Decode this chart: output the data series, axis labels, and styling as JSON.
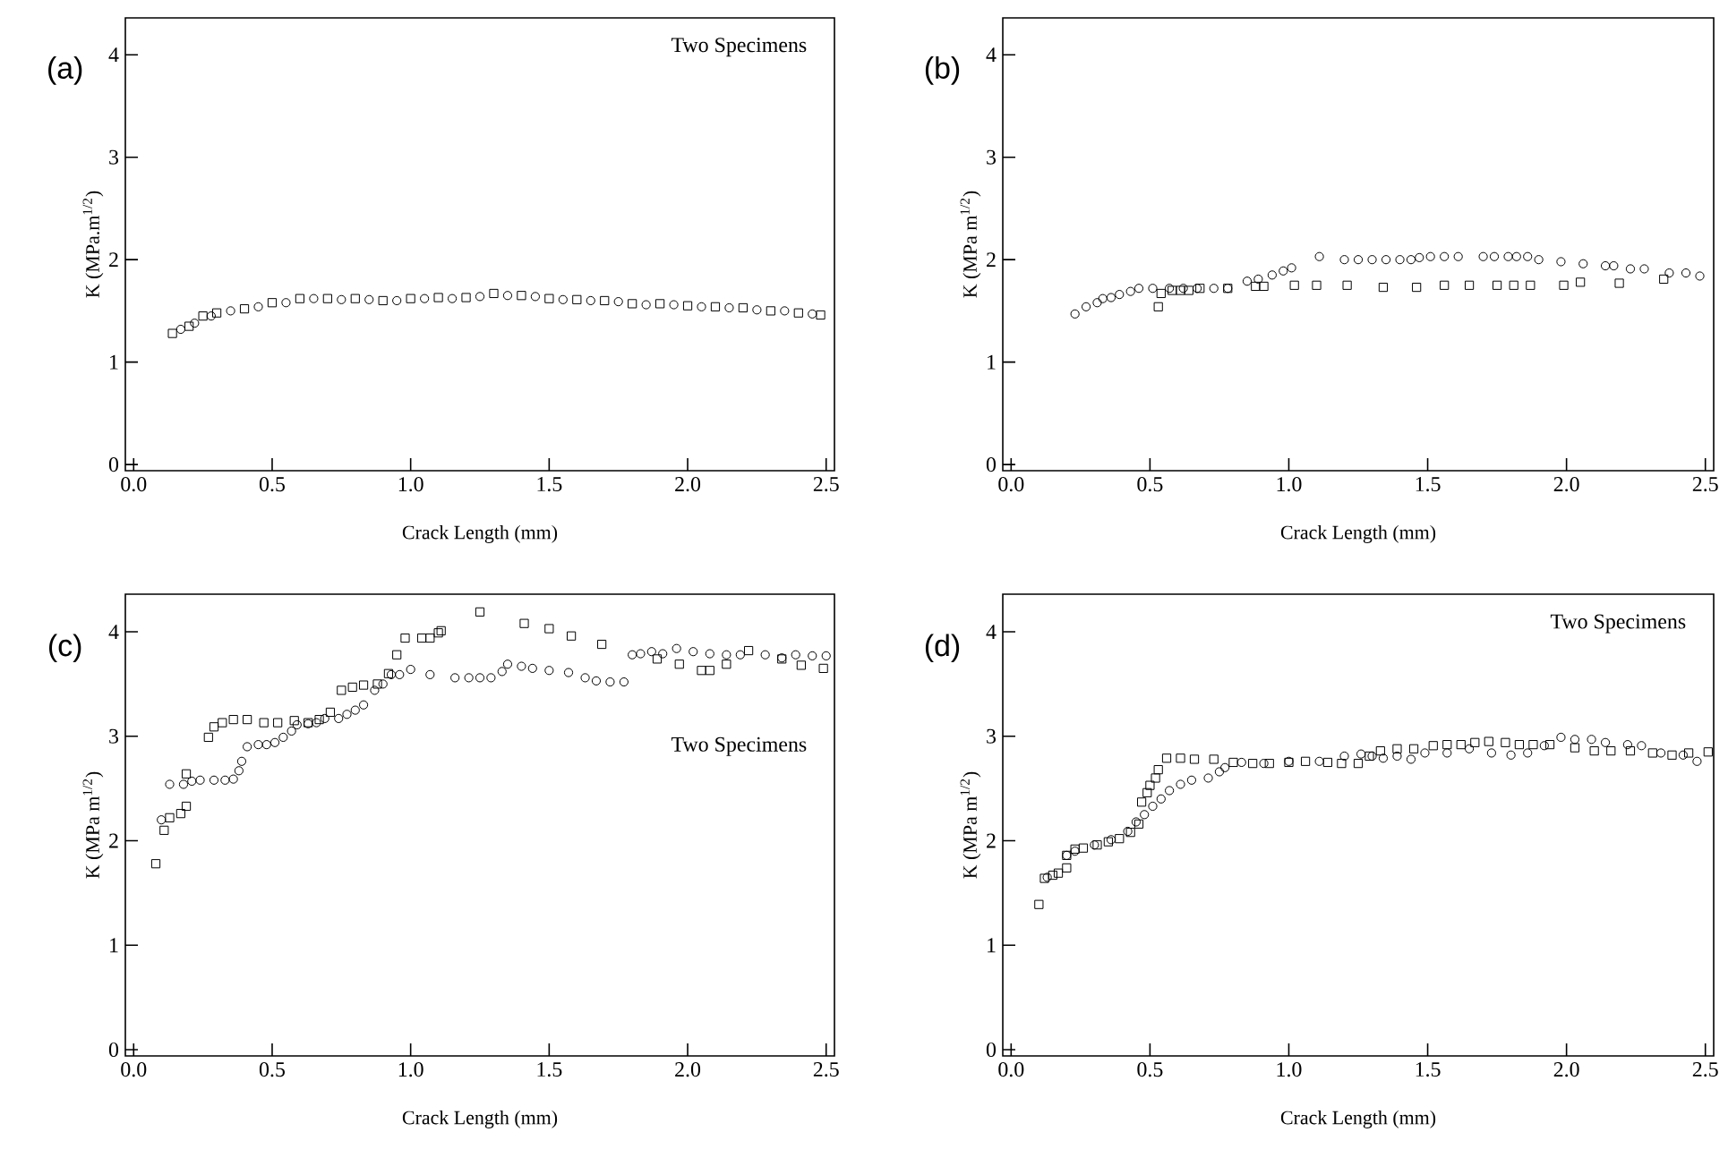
{
  "chart_data": [
    {
      "type": "scatter",
      "title": "(a)",
      "xlabel": "Crack Length (mm)",
      "ylabel": "K (MPa.m$^{1/2}$)",
      "annotations": [
        "Two Specimens"
      ],
      "xlim": [
        -0.03,
        2.53
      ],
      "ylim": [
        -0.06,
        4.36
      ],
      "xticks": [
        {
          "value": 0,
          "label": "0.0"
        },
        {
          "value": 0.5,
          "label": "0.5"
        },
        {
          "value": 1,
          "label": "1.0"
        },
        {
          "value": 1.5,
          "label": "1.5"
        },
        {
          "value": 2,
          "label": "2.0"
        },
        {
          "value": 2.5,
          "label": "2.5"
        }
      ],
      "yticks": [
        0,
        1,
        2,
        3,
        4
      ],
      "series": [
        {
          "marker": "square",
          "color": "#000000",
          "x": [
            0.14,
            0.2,
            0.25,
            0.3,
            0.4,
            0.5,
            0.6,
            0.7,
            0.8,
            0.9,
            1.0,
            1.1,
            1.2,
            1.3,
            1.4,
            1.5,
            1.6,
            1.7,
            1.8,
            1.9,
            2.0,
            2.1,
            2.2,
            2.3,
            2.4,
            2.48
          ],
          "values": [
            1.28,
            1.35,
            1.45,
            1.48,
            1.52,
            1.58,
            1.62,
            1.62,
            1.62,
            1.6,
            1.62,
            1.63,
            1.63,
            1.67,
            1.65,
            1.62,
            1.61,
            1.6,
            1.57,
            1.57,
            1.55,
            1.54,
            1.53,
            1.5,
            1.48,
            1.46
          ]
        },
        {
          "marker": "circle",
          "color": "#000000",
          "x": [
            0.17,
            0.22,
            0.28,
            0.35,
            0.45,
            0.55,
            0.65,
            0.75,
            0.85,
            0.95,
            1.05,
            1.15,
            1.25,
            1.35,
            1.45,
            1.55,
            1.65,
            1.75,
            1.85,
            1.95,
            2.05,
            2.15,
            2.25,
            2.35,
            2.45
          ],
          "values": [
            1.32,
            1.38,
            1.45,
            1.5,
            1.54,
            1.58,
            1.62,
            1.61,
            1.61,
            1.6,
            1.62,
            1.62,
            1.64,
            1.65,
            1.64,
            1.61,
            1.6,
            1.59,
            1.56,
            1.56,
            1.54,
            1.53,
            1.51,
            1.5,
            1.47
          ]
        }
      ]
    },
    {
      "type": "scatter",
      "title": "(b)",
      "xlabel": "Crack Length (mm)",
      "ylabel": "K (MPa m$^{1/2}$)",
      "xlim": [
        -0.03,
        2.53
      ],
      "ylim": [
        -0.06,
        4.36
      ],
      "xticks": [
        {
          "value": 0,
          "label": "0.0"
        },
        {
          "value": 0.5,
          "label": "0.5"
        },
        {
          "value": 1,
          "label": "1.0"
        },
        {
          "value": 1.5,
          "label": "1.5"
        },
        {
          "value": 2,
          "label": "2.0"
        },
        {
          "value": 2.5,
          "label": "2.5"
        }
      ],
      "yticks": [
        0,
        1,
        2,
        3,
        4
      ],
      "series": [
        {
          "marker": "circle",
          "color": "#000000",
          "x": [
            0.23,
            0.27,
            0.31,
            0.33,
            0.36,
            0.39,
            0.43,
            0.46,
            0.51,
            0.57,
            0.62,
            0.67,
            0.73,
            0.78,
            0.85,
            0.89,
            0.94,
            0.98,
            1.01,
            1.11,
            1.2,
            1.25,
            1.3,
            1.35,
            1.4,
            1.44,
            1.47,
            1.51,
            1.56,
            1.61,
            1.7,
            1.74,
            1.79,
            1.82,
            1.86,
            1.9,
            1.98,
            2.06,
            2.14,
            2.17,
            2.23,
            2.28,
            2.37,
            2.43,
            2.48
          ],
          "values": [
            1.47,
            1.54,
            1.58,
            1.62,
            1.63,
            1.66,
            1.69,
            1.72,
            1.72,
            1.72,
            1.72,
            1.72,
            1.72,
            1.72,
            1.79,
            1.81,
            1.85,
            1.89,
            1.92,
            2.03,
            2.0,
            2.0,
            2.0,
            2.0,
            2.0,
            2.0,
            2.02,
            2.03,
            2.03,
            2.03,
            2.03,
            2.03,
            2.03,
            2.03,
            2.03,
            2.0,
            1.98,
            1.96,
            1.94,
            1.94,
            1.91,
            1.91,
            1.87,
            1.87,
            1.84
          ]
        },
        {
          "marker": "square",
          "color": "#000000",
          "x": [
            0.53,
            0.54,
            0.58,
            0.61,
            0.64,
            0.68,
            0.78,
            0.88,
            0.91,
            1.02,
            1.1,
            1.21,
            1.34,
            1.46,
            1.56,
            1.65,
            1.75,
            1.81,
            1.87,
            1.99,
            2.05,
            2.19,
            2.35
          ],
          "values": [
            1.54,
            1.67,
            1.7,
            1.7,
            1.7,
            1.72,
            1.72,
            1.74,
            1.74,
            1.75,
            1.75,
            1.75,
            1.73,
            1.73,
            1.75,
            1.75,
            1.75,
            1.75,
            1.75,
            1.75,
            1.78,
            1.77,
            1.81
          ]
        }
      ]
    },
    {
      "type": "scatter",
      "title": "(c)",
      "xlabel": "Crack Length (mm)",
      "ylabel": "K (MPa m$^{1/2}$)",
      "annotations": [
        "Two Specimens"
      ],
      "xlim": [
        -0.03,
        2.53
      ],
      "ylim": [
        -0.06,
        4.36
      ],
      "xticks": [
        {
          "value": 0,
          "label": "0.0"
        },
        {
          "value": 0.5,
          "label": "0.5"
        },
        {
          "value": 1,
          "label": "1.0"
        },
        {
          "value": 1.5,
          "label": "1.5"
        },
        {
          "value": 2,
          "label": "2.0"
        },
        {
          "value": 2.5,
          "label": "2.5"
        }
      ],
      "yticks": [
        0,
        1,
        2,
        3,
        4
      ],
      "series": [
        {
          "marker": "square",
          "color": "#000000",
          "x": [
            0.08,
            0.11,
            0.13,
            0.17,
            0.19,
            0.19,
            0.27,
            0.29,
            0.32,
            0.36,
            0.41,
            0.47,
            0.52,
            0.58,
            0.63,
            0.67,
            0.71,
            0.75,
            0.79,
            0.83,
            0.88,
            0.92,
            0.95,
            0.98,
            1.04,
            1.07,
            1.1,
            1.11,
            1.25,
            1.41,
            1.5,
            1.58,
            1.69,
            1.89,
            1.97,
            2.05,
            2.08,
            2.14,
            2.22,
            2.34,
            2.41,
            2.49
          ],
          "values": [
            1.78,
            2.1,
            2.22,
            2.26,
            2.33,
            2.64,
            2.99,
            3.09,
            3.13,
            3.16,
            3.16,
            3.13,
            3.13,
            3.15,
            3.13,
            3.16,
            3.23,
            3.44,
            3.47,
            3.49,
            3.5,
            3.6,
            3.78,
            3.94,
            3.94,
            3.94,
            3.99,
            4.01,
            4.19,
            4.08,
            4.03,
            3.96,
            3.88,
            3.74,
            3.69,
            3.63,
            3.63,
            3.69,
            3.82,
            3.74,
            3.68,
            3.65
          ]
        },
        {
          "marker": "circle",
          "color": "#000000",
          "x": [
            0.1,
            0.13,
            0.18,
            0.21,
            0.24,
            0.29,
            0.33,
            0.36,
            0.38,
            0.39,
            0.41,
            0.45,
            0.48,
            0.51,
            0.54,
            0.57,
            0.59,
            0.63,
            0.66,
            0.69,
            0.74,
            0.77,
            0.8,
            0.83,
            0.87,
            0.9,
            0.93,
            0.96,
            1.0,
            1.07,
            1.16,
            1.21,
            1.25,
            1.29,
            1.33,
            1.35,
            1.4,
            1.44,
            1.5,
            1.57,
            1.63,
            1.67,
            1.72,
            1.77,
            1.8,
            1.83,
            1.87,
            1.91,
            1.96,
            2.02,
            2.08,
            2.14,
            2.19,
            2.28,
            2.34,
            2.39,
            2.45,
            2.5
          ],
          "values": [
            2.2,
            2.54,
            2.54,
            2.57,
            2.58,
            2.58,
            2.58,
            2.59,
            2.67,
            2.76,
            2.9,
            2.92,
            2.92,
            2.94,
            2.99,
            3.05,
            3.11,
            3.12,
            3.13,
            3.17,
            3.17,
            3.21,
            3.25,
            3.3,
            3.44,
            3.5,
            3.59,
            3.59,
            3.64,
            3.59,
            3.56,
            3.56,
            3.56,
            3.56,
            3.62,
            3.69,
            3.67,
            3.65,
            3.63,
            3.61,
            3.56,
            3.53,
            3.52,
            3.52,
            3.78,
            3.79,
            3.81,
            3.79,
            3.84,
            3.81,
            3.79,
            3.78,
            3.78,
            3.78,
            3.75,
            3.78,
            3.77,
            3.77
          ]
        }
      ]
    },
    {
      "type": "scatter",
      "title": "(d)",
      "xlabel": "Crack Length (mm)",
      "ylabel": "K (MPa m$^{1/2}$)",
      "annotations": [
        "Two Specimens"
      ],
      "xlim": [
        -0.03,
        2.53
      ],
      "ylim": [
        -0.06,
        4.36
      ],
      "xticks": [
        {
          "value": 0,
          "label": "0.0"
        },
        {
          "value": 0.5,
          "label": "0.5"
        },
        {
          "value": 1,
          "label": "1.0"
        },
        {
          "value": 1.5,
          "label": "1.5"
        },
        {
          "value": 2,
          "label": "2.0"
        },
        {
          "value": 2.5,
          "label": "2.5"
        }
      ],
      "yticks": [
        0,
        1,
        2,
        3,
        4
      ],
      "series": [
        {
          "marker": "square",
          "color": "#000000",
          "x": [
            0.1,
            0.12,
            0.15,
            0.17,
            0.2,
            0.2,
            0.23,
            0.26,
            0.31,
            0.35,
            0.39,
            0.43,
            0.46,
            0.47,
            0.49,
            0.5,
            0.52,
            0.53,
            0.56,
            0.61,
            0.66,
            0.73,
            0.8,
            0.87,
            0.93,
            1.0,
            1.06,
            1.14,
            1.19,
            1.25,
            1.29,
            1.33,
            1.39,
            1.45,
            1.52,
            1.57,
            1.62,
            1.67,
            1.72,
            1.78,
            1.83,
            1.88,
            1.94,
            2.03,
            2.1,
            2.16,
            2.23,
            2.31,
            2.38,
            2.44,
            2.51
          ],
          "values": [
            1.39,
            1.64,
            1.67,
            1.69,
            1.74,
            1.86,
            1.92,
            1.93,
            1.96,
            1.99,
            2.02,
            2.08,
            2.16,
            2.37,
            2.46,
            2.53,
            2.6,
            2.68,
            2.79,
            2.79,
            2.78,
            2.78,
            2.75,
            2.74,
            2.74,
            2.75,
            2.76,
            2.75,
            2.74,
            2.74,
            2.81,
            2.86,
            2.88,
            2.88,
            2.91,
            2.92,
            2.92,
            2.94,
            2.95,
            2.94,
            2.92,
            2.92,
            2.92,
            2.89,
            2.86,
            2.86,
            2.86,
            2.84,
            2.82,
            2.84,
            2.85
          ]
        },
        {
          "marker": "circle",
          "color": "#000000",
          "x": [
            0.13,
            0.2,
            0.23,
            0.3,
            0.36,
            0.42,
            0.45,
            0.48,
            0.51,
            0.54,
            0.57,
            0.61,
            0.65,
            0.71,
            0.75,
            0.77,
            0.83,
            0.91,
            1.0,
            1.11,
            1.2,
            1.26,
            1.3,
            1.34,
            1.39,
            1.44,
            1.49,
            1.57,
            1.65,
            1.73,
            1.8,
            1.86,
            1.92,
            1.98,
            2.03,
            2.09,
            2.14,
            2.22,
            2.27,
            2.34,
            2.42,
            2.47
          ],
          "values": [
            1.65,
            1.86,
            1.9,
            1.96,
            2.01,
            2.09,
            2.18,
            2.25,
            2.33,
            2.4,
            2.48,
            2.54,
            2.58,
            2.6,
            2.66,
            2.7,
            2.75,
            2.74,
            2.76,
            2.76,
            2.81,
            2.83,
            2.81,
            2.79,
            2.81,
            2.78,
            2.84,
            2.84,
            2.88,
            2.84,
            2.82,
            2.84,
            2.91,
            2.99,
            2.97,
            2.97,
            2.94,
            2.92,
            2.91,
            2.84,
            2.82,
            2.76
          ]
        }
      ]
    }
  ]
}
